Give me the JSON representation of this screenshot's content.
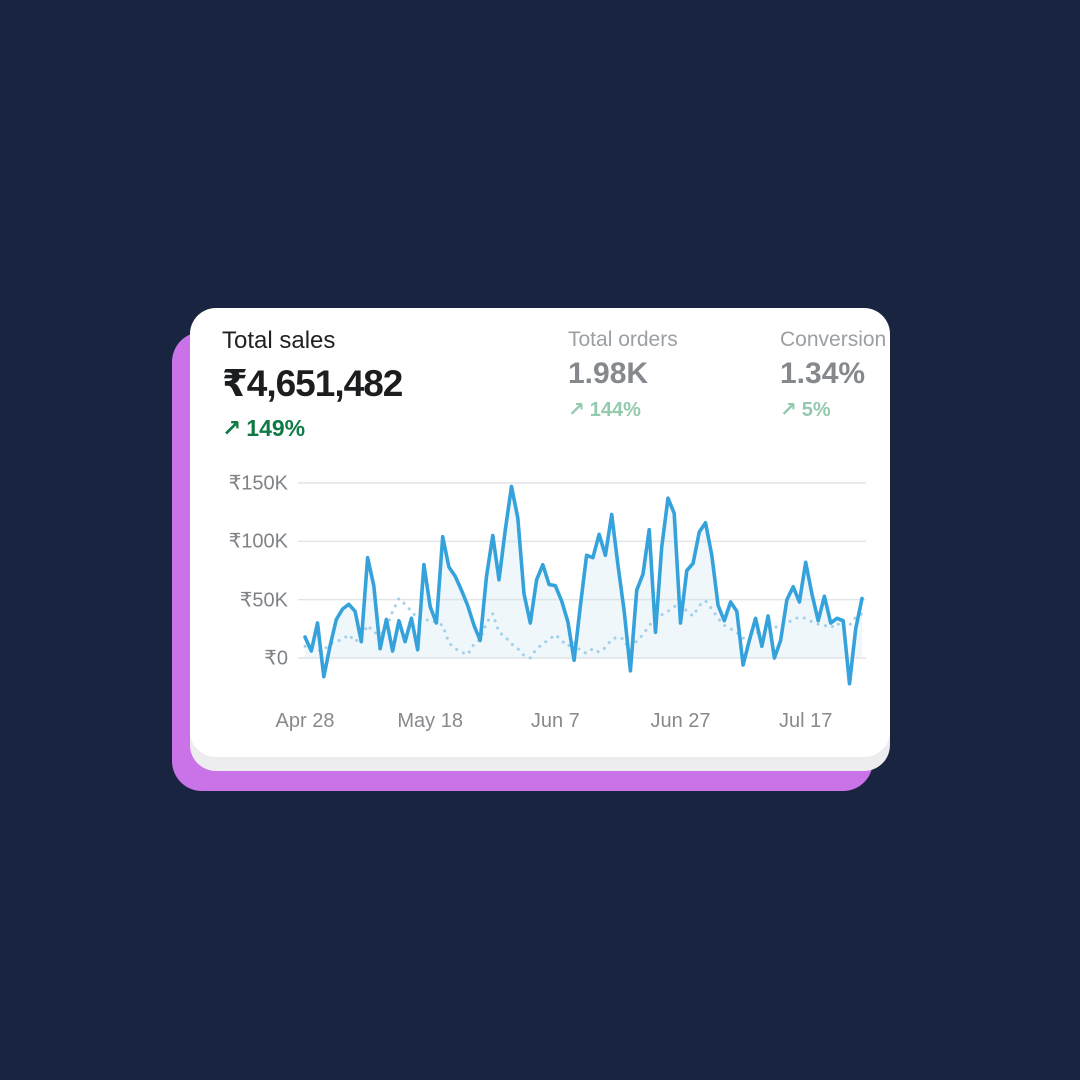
{
  "theme": {
    "page_bg": "#182440",
    "accent_card_color": "#ca73e9",
    "card_bg": "#ffffff",
    "card_edge_color": "#ededf0",
    "primary_text": "#1b1d1f",
    "muted_text": "#85898d",
    "strong_green": "#0f7a45",
    "soft_green": "#93c9ad",
    "gridline_color": "#e3e4e6"
  },
  "metrics": {
    "primary": {
      "label": "Total sales",
      "value": "₹4,651,482",
      "arrow": "↗",
      "delta": "149%"
    },
    "secondary": [
      {
        "label": "Total orders",
        "value": "1.98K",
        "arrow": "↗",
        "delta": "144%"
      },
      {
        "label": "Conversion",
        "value": "1.34%",
        "arrow": "↗",
        "delta": "5%"
      }
    ]
  },
  "chart_data": {
    "type": "line",
    "unit": "INR thousands (K)",
    "grid": "horizontal",
    "legend": "none",
    "y_ticks": [
      "₹150K",
      "₹100K",
      "₹50K",
      "₹0"
    ],
    "y_tick_values_k": [
      150,
      100,
      50,
      0
    ],
    "ylim_k": [
      -30,
      160
    ],
    "x_ticks": [
      "Apr 28",
      "May 18",
      "Jun 7",
      "Jun 27",
      "Jul 17"
    ],
    "x_tick_day_index": [
      0,
      20,
      40,
      60,
      80
    ],
    "days_total": 90,
    "series": [
      {
        "name": "current-period-sales",
        "style": "solid",
        "color": "#35a2dc",
        "fill_under": "rgba(203,228,242,0.30)",
        "values_k": [
          18,
          6,
          30,
          -16,
          10,
          33,
          42,
          46,
          40,
          14,
          86,
          62,
          8,
          33,
          6,
          32,
          14,
          34,
          7,
          80,
          44,
          30,
          104,
          78,
          70,
          58,
          45,
          28,
          15,
          70,
          105,
          67,
          110,
          147,
          120,
          55,
          30,
          67,
          80,
          63,
          62,
          49,
          31,
          -2,
          45,
          88,
          86,
          106,
          88,
          123,
          80,
          40,
          -11,
          58,
          72,
          110,
          22,
          95,
          137,
          124,
          30,
          75,
          81,
          108,
          116,
          88,
          45,
          32,
          48,
          40,
          -6,
          15,
          34,
          10,
          36,
          0,
          15,
          50,
          61,
          48,
          82,
          55,
          32,
          53,
          30,
          34,
          32,
          -22,
          25,
          51
        ]
      },
      {
        "name": "previous-period-sales",
        "style": "dotted",
        "color": "#a3cfe9",
        "values_k": [
          10,
          8,
          6,
          7,
          12,
          14,
          16,
          20,
          14,
          18,
          28,
          22,
          20,
          25,
          40,
          51,
          46,
          40,
          34,
          32,
          33,
          30,
          28,
          13,
          8,
          5,
          3,
          12,
          16,
          30,
          38,
          22,
          18,
          12,
          8,
          2,
          0,
          8,
          12,
          16,
          20,
          15,
          10,
          14,
          6,
          4,
          8,
          5,
          9,
          16,
          18,
          16,
          4,
          15,
          20,
          28,
          33,
          37,
          40,
          44,
          47,
          40,
          36,
          45,
          49,
          42,
          34,
          28,
          25,
          22,
          17,
          19,
          21,
          23,
          20,
          26,
          28,
          30,
          33,
          35,
          34,
          31,
          29,
          28,
          26,
          30,
          25,
          28,
          35,
          38
        ]
      }
    ]
  }
}
